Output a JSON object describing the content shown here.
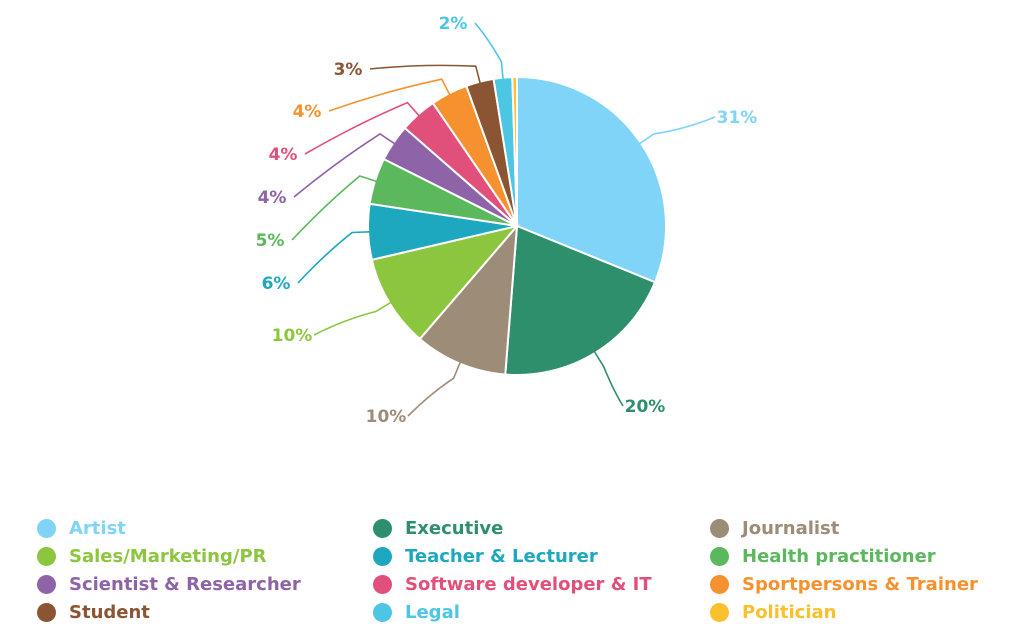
{
  "chart_data": {
    "type": "pie",
    "title": "",
    "slices": [
      {
        "name": "Artist",
        "value": 31,
        "label": "31%",
        "color": "#7fd4f7"
      },
      {
        "name": "Executive",
        "value": 20,
        "label": "20%",
        "color": "#2e8f6d"
      },
      {
        "name": "Journalist",
        "value": 10,
        "label": "10%",
        "color": "#9c8c78"
      },
      {
        "name": "Sales/Marketing/PR",
        "value": 10,
        "label": "10%",
        "color": "#8cc63f"
      },
      {
        "name": "Teacher & Lecturer",
        "value": 6,
        "label": "6%",
        "color": "#1ea8bf"
      },
      {
        "name": "Health practitioner",
        "value": 5,
        "label": "5%",
        "color": "#5cb85c"
      },
      {
        "name": "Scientist & Researcher",
        "value": 4,
        "label": "4%",
        "color": "#8e63a8"
      },
      {
        "name": "Software developer & IT",
        "value": 4,
        "label": "4%",
        "color": "#e0507a"
      },
      {
        "name": "Sportpersons & Trainer",
        "value": 4,
        "label": "4%",
        "color": "#f5922f"
      },
      {
        "name": "Student",
        "value": 3,
        "label": "3%",
        "color": "#8b5533"
      },
      {
        "name": "Legal",
        "value": 2,
        "label": "2%",
        "color": "#4cc6e3"
      },
      {
        "name": "Politician",
        "value": 0.5,
        "label": "",
        "color": "#fbc02d"
      }
    ],
    "legend_placement": "bottom"
  }
}
